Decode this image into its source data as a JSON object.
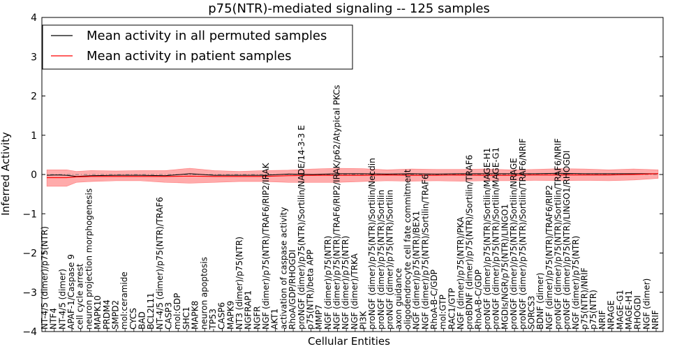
{
  "chart_data": {
    "type": "line",
    "title": "p75(NTR)-mediated signaling -- 125 samples",
    "xlabel": "Cellular Entities",
    "ylabel": "Inferred Activity",
    "ylim": [
      -4,
      4
    ],
    "yticks": [
      -4,
      -3,
      -2,
      -1,
      0,
      1,
      2,
      3,
      4
    ],
    "legend": {
      "placement": "top-left"
    },
    "colors": {
      "permuted": "#000000",
      "patient": "#ff0000",
      "band": "#ff6666",
      "zero_line": "#808080"
    },
    "n_entities": 125,
    "x_labels": [
      "NT-4/5 (dimer)/p75(NTR)",
      "NTF4",
      "NT-4/5 (dimer)",
      "APAF-1/Caspase 9",
      "cell cycle arrest",
      "neuron projection morphogenesis",
      "MAPK10",
      "PRDM4",
      "SMPD2",
      "mol:ceramide",
      "CYCS",
      "BAD",
      "BCL2L11",
      "NT-4/5 (dimer)/p75(NTR)/TRAF6",
      "CASP3",
      "mol:GDP",
      "SHC1",
      "MAPK8",
      "neuron apoptosis",
      "TP53",
      "CASP6",
      "MAPK9",
      "NT3 (dimer)/p75(NTR)",
      "NGFRAP1",
      "NGFR",
      "NGF (dimer)/p75(NTR)/TRAF6/RIP2/IRAK",
      "AKT1",
      "activation of caspase activity",
      "RhoA/GDP/RHOGDI",
      "proNGF (dimer)/p75(NTR)/Sortilin/NADE/14-3-3 E",
      "p75(NTR)/beta APP",
      "MMP7",
      "NGF (dimer)/p75(NTR)",
      "NGF (dimer)/p75(NTR)/TRAF6/RIP2/IRAK/p62/Atypical PKCs",
      "NGF (dimer)/p75(NTR)",
      "NGF (dimer)/TRKA",
      "PI3K",
      "proNGF (dimer)/p75(NTR)/Sortilin/Necdin",
      "proNGF (dimer)/p75(NTR)/Sortilin",
      "proNGF (dimer)/p75(NTR)/Sortilin",
      "axon guidance",
      "oligodendrocyte cell fate commitment",
      "NGF (dimer)/p75(NTR)/BEX1",
      "NGF (dimer)/p75(NTR)/Sortilin/TRAF6",
      "RhoA-B-C/GDP",
      "mol:GTP",
      "RAC1/GTP",
      "NGF (dimer)/p75(NTR)/PKA",
      "proBDNF (dimer)/p75(NTR)/Sortilin/TRAF6",
      "RhoA-B-C/GDP",
      "proNGF (dimer)/p75(NTR)/Sortilin/MAGE-H1",
      "proNGF (dimer)/p75(NTR)/Sortilin/MAGE-G1",
      "MGDIs/NGR/p75(NTR)/LINGO1",
      "proNGF (dimer)/p75(NTR)/Sortilin/NRAGE",
      "proNGF (dimer)/p75(NTR)/Sortilin/TRAF6/NRIF",
      "SORCS3",
      "BDNF (dimer)",
      "NGF (dimer)/p75(NTR)/TRAF6/RIP2",
      "proNGF (dimer)/p75(NTR)/Sortilin/TRAF6/NRIF",
      "proNGF (dimer)/p75(NTR)/LINGO1/RHOGDI",
      "NGF (dimer)/p75(NTR)",
      "p75(NTR)/NRIF",
      "p75(NTR)",
      "NRIF",
      "NRAGE",
      "MAGE-G1",
      "MAGE-H1",
      "RHOGDI",
      "NGF (dimer)",
      "NRIF"
    ],
    "series": [
      {
        "name": "Mean activity in all permuted samples",
        "x": [
          1,
          3,
          5,
          7,
          10,
          15,
          20,
          25,
          30,
          35,
          40,
          45,
          50,
          55,
          60,
          65,
          70,
          75,
          80,
          85,
          90,
          95,
          100,
          105,
          110,
          115,
          120,
          125
        ],
        "values": [
          -0.02,
          -0.01,
          -0.02,
          -0.05,
          -0.03,
          -0.02,
          -0.02,
          -0.03,
          0.02,
          -0.02,
          -0.02,
          -0.02,
          0.01,
          0.0,
          0.02,
          0.02,
          0.01,
          0.02,
          0.01,
          0.02,
          0.02,
          0.02,
          0.02,
          0.03,
          0.02,
          0.02,
          0.02,
          0.02
        ]
      },
      {
        "name": "Mean activity in patient samples",
        "x": [
          1,
          3,
          5,
          7,
          10,
          15,
          20,
          25,
          30,
          35,
          40,
          45,
          50,
          55,
          60,
          65,
          70,
          75,
          80,
          85,
          90,
          95,
          100,
          105,
          110,
          115,
          120,
          125
        ],
        "values": [
          -0.08,
          -0.08,
          -0.08,
          -0.06,
          -0.05,
          -0.05,
          -0.05,
          -0.05,
          -0.04,
          -0.05,
          -0.05,
          -0.05,
          -0.03,
          -0.02,
          -0.02,
          -0.02,
          -0.01,
          -0.02,
          -0.02,
          -0.01,
          -0.02,
          -0.02,
          -0.01,
          -0.01,
          -0.01,
          -0.01,
          0.0,
          0.02
        ],
        "band_upper": [
          0.12,
          0.12,
          0.12,
          0.08,
          0.1,
          0.09,
          0.1,
          0.1,
          0.16,
          0.1,
          0.08,
          0.1,
          0.11,
          0.14,
          0.16,
          0.15,
          0.12,
          0.14,
          0.13,
          0.13,
          0.14,
          0.12,
          0.13,
          0.15,
          0.14,
          0.12,
          0.14,
          0.12
        ],
        "band_lower": [
          -0.3,
          -0.3,
          -0.3,
          -0.2,
          -0.18,
          -0.16,
          -0.16,
          -0.2,
          -0.22,
          -0.2,
          -0.18,
          -0.18,
          -0.2,
          -0.2,
          -0.2,
          -0.18,
          -0.16,
          -0.17,
          -0.16,
          -0.17,
          -0.16,
          -0.16,
          -0.15,
          -0.16,
          -0.15,
          -0.16,
          -0.14,
          -0.1
        ]
      }
    ]
  }
}
